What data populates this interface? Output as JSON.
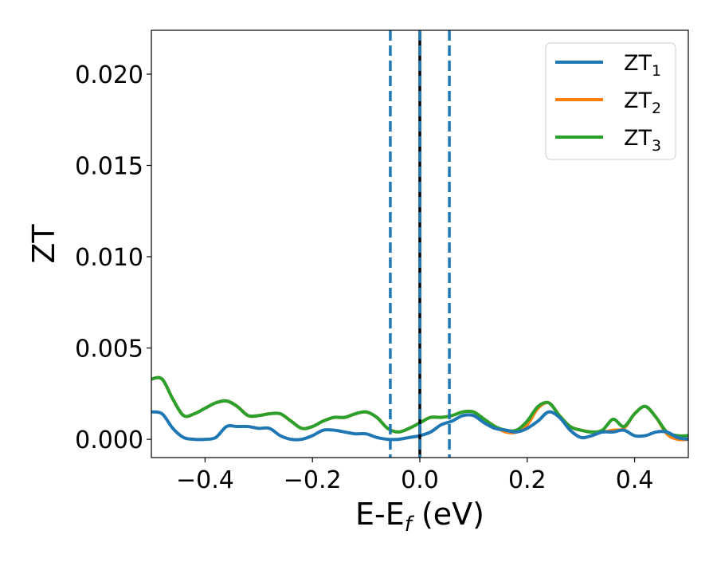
{
  "chart_data": {
    "type": "line",
    "title": "",
    "xlabel": "E-E",
    "xlabel_sub": "f",
    "xlabel_unit": " (eV)",
    "ylabel": "ZT",
    "xlim": [
      -0.5,
      0.5
    ],
    "ylim": [
      -0.001,
      0.0224
    ],
    "xticks": [
      -0.4,
      -0.2,
      0.0,
      0.2,
      0.4
    ],
    "xtick_labels": [
      "−0.4",
      "−0.2",
      "0.0",
      "0.2",
      "0.4"
    ],
    "yticks": [
      0.0,
      0.005,
      0.01,
      0.015,
      0.02
    ],
    "ytick_labels": [
      "0.000",
      "0.005",
      "0.010",
      "0.015",
      "0.020"
    ],
    "grid": false,
    "legend_placement": "top-right",
    "vlines": [
      {
        "x": -0.055,
        "style": "dashed",
        "color": "#1f77b4"
      },
      {
        "x": 0.055,
        "style": "dashed",
        "color": "#1f77b4"
      },
      {
        "x": 0.0,
        "style": "solid",
        "color": "#000000"
      },
      {
        "x": 0.0,
        "style": "dashed",
        "color": "#1f77b4"
      }
    ],
    "series": [
      {
        "name": "ZT",
        "sub": "1",
        "color": "#1f77b4",
        "x": [
          -0.5,
          -0.48,
          -0.46,
          -0.44,
          -0.42,
          -0.4,
          -0.38,
          -0.36,
          -0.34,
          -0.32,
          -0.3,
          -0.28,
          -0.26,
          -0.24,
          -0.22,
          -0.2,
          -0.18,
          -0.16,
          -0.14,
          -0.12,
          -0.1,
          -0.08,
          -0.06,
          -0.04,
          -0.02,
          0.0,
          0.02,
          0.04,
          0.06,
          0.08,
          0.1,
          0.12,
          0.14,
          0.16,
          0.18,
          0.2,
          0.22,
          0.24,
          0.26,
          0.28,
          0.3,
          0.32,
          0.34,
          0.36,
          0.38,
          0.4,
          0.42,
          0.44,
          0.46,
          0.48,
          0.5
        ],
        "y": [
          0.0015,
          0.0014,
          0.0006,
          0.0001,
          0.0,
          0.0,
          0.0001,
          0.0007,
          0.0007,
          0.0007,
          0.0006,
          0.0006,
          0.0002,
          0.0,
          0.0,
          0.0002,
          0.0005,
          0.0005,
          0.0004,
          0.0003,
          0.0003,
          0.0001,
          0.0,
          0.0,
          0.0001,
          0.0002,
          0.0004,
          0.0008,
          0.001,
          0.0013,
          0.0013,
          0.0009,
          0.0006,
          0.0005,
          0.0004,
          0.0006,
          0.001,
          0.0015,
          0.0012,
          0.0005,
          0.0001,
          0.0002,
          0.0004,
          0.0004,
          0.0005,
          0.0002,
          0.0002,
          0.0004,
          0.0004,
          0.0001,
          0.0
        ]
      },
      {
        "name": "ZT",
        "sub": "2",
        "color": "#ff7f0e",
        "x": [
          -0.5,
          -0.48,
          -0.46,
          -0.44,
          -0.42,
          -0.4,
          -0.38,
          -0.36,
          -0.34,
          -0.32,
          -0.3,
          -0.28,
          -0.26,
          -0.24,
          -0.22,
          -0.2,
          -0.18,
          -0.16,
          -0.14,
          -0.12,
          -0.1,
          -0.08,
          -0.06,
          -0.04,
          -0.02,
          0.0,
          0.02,
          0.04,
          0.06,
          0.08,
          0.1,
          0.12,
          0.14,
          0.16,
          0.18,
          0.2,
          0.22,
          0.24,
          0.26,
          0.28,
          0.3,
          0.32,
          0.34,
          0.36,
          0.38,
          0.4,
          0.42,
          0.44,
          0.46,
          0.48,
          0.5
        ],
        "y": [
          0.0033,
          0.0033,
          0.0022,
          0.0013,
          0.0014,
          0.0017,
          0.002,
          0.0021,
          0.0018,
          0.0013,
          0.0013,
          0.0014,
          0.0014,
          0.001,
          0.0006,
          0.0007,
          0.001,
          0.0012,
          0.0012,
          0.0014,
          0.0015,
          0.0012,
          0.0006,
          0.0004,
          0.0006,
          0.0009,
          0.0012,
          0.0012,
          0.0013,
          0.0015,
          0.0015,
          0.0011,
          0.0007,
          0.0004,
          0.0004,
          0.0008,
          0.0017,
          0.002,
          0.0013,
          0.0007,
          0.0005,
          0.0004,
          0.0004,
          0.0005,
          0.0006,
          0.0014,
          0.0018,
          0.0012,
          0.0003,
          0.0,
          0.0
        ]
      },
      {
        "name": "ZT",
        "sub": "3",
        "color": "#2ca02c",
        "x": [
          -0.5,
          -0.48,
          -0.46,
          -0.44,
          -0.42,
          -0.4,
          -0.38,
          -0.36,
          -0.34,
          -0.32,
          -0.3,
          -0.28,
          -0.26,
          -0.24,
          -0.22,
          -0.2,
          -0.18,
          -0.16,
          -0.14,
          -0.12,
          -0.1,
          -0.08,
          -0.06,
          -0.04,
          -0.02,
          0.0,
          0.02,
          0.04,
          0.06,
          0.08,
          0.1,
          0.12,
          0.14,
          0.16,
          0.18,
          0.2,
          0.22,
          0.24,
          0.26,
          0.28,
          0.3,
          0.32,
          0.34,
          0.36,
          0.38,
          0.4,
          0.42,
          0.44,
          0.46,
          0.48,
          0.5
        ],
        "y": [
          0.0033,
          0.0033,
          0.0022,
          0.0013,
          0.0014,
          0.0017,
          0.002,
          0.0021,
          0.0018,
          0.0013,
          0.0013,
          0.0014,
          0.0014,
          0.001,
          0.0006,
          0.0007,
          0.001,
          0.0012,
          0.0012,
          0.0014,
          0.0015,
          0.0012,
          0.0006,
          0.0004,
          0.0006,
          0.0009,
          0.0012,
          0.0012,
          0.0013,
          0.0015,
          0.0015,
          0.0011,
          0.0007,
          0.0005,
          0.0005,
          0.001,
          0.0018,
          0.002,
          0.0013,
          0.0007,
          0.0005,
          0.0004,
          0.0005,
          0.0011,
          0.0007,
          0.0014,
          0.0018,
          0.0012,
          0.0004,
          0.0002,
          0.0002
        ]
      }
    ]
  }
}
